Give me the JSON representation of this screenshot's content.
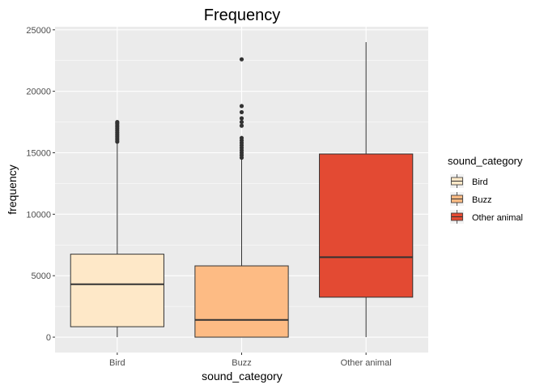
{
  "chart_data": {
    "type": "boxplot",
    "title": "Frequency",
    "xlabel": "sound_category",
    "ylabel": "frequency",
    "ylim": [
      -1250,
      25250
    ],
    "yticks": [
      0,
      5000,
      10000,
      15000,
      20000,
      25000
    ],
    "categories": [
      "Bird",
      "Buzz",
      "Other animal"
    ],
    "grid": true,
    "legend": {
      "title": "sound_category",
      "position": "right",
      "entries": [
        "Bird",
        "Buzz",
        "Other animal"
      ]
    },
    "colors": {
      "Bird": "#fee8c8",
      "Buzz": "#fdbb84",
      "Other animal": "#e34a33",
      "panel": "#ebebeb",
      "grid_major": "#ffffff",
      "outline": "#333333"
    },
    "boxes": [
      {
        "category": "Bird",
        "whisker_low": 0,
        "q1": 850,
        "median": 4300,
        "q3": 6750,
        "whisker_high": 15800,
        "outliers": [
          15900,
          16050,
          16200,
          16350,
          16500,
          16650,
          16800,
          16950,
          17100,
          17250,
          17400,
          17500
        ]
      },
      {
        "category": "Buzz",
        "whisker_low": 0,
        "q1": 0,
        "median": 1400,
        "q3": 5800,
        "whisker_high": 14500,
        "outliers": [
          14600,
          14800,
          15000,
          15200,
          15400,
          15600,
          15800,
          16000,
          16200,
          17200,
          17500,
          17800,
          18300,
          18800,
          22600
        ]
      },
      {
        "category": "Other animal",
        "whisker_low": 0,
        "q1": 3250,
        "median": 6500,
        "q3": 14900,
        "whisker_high": 24000,
        "outliers": []
      }
    ]
  }
}
